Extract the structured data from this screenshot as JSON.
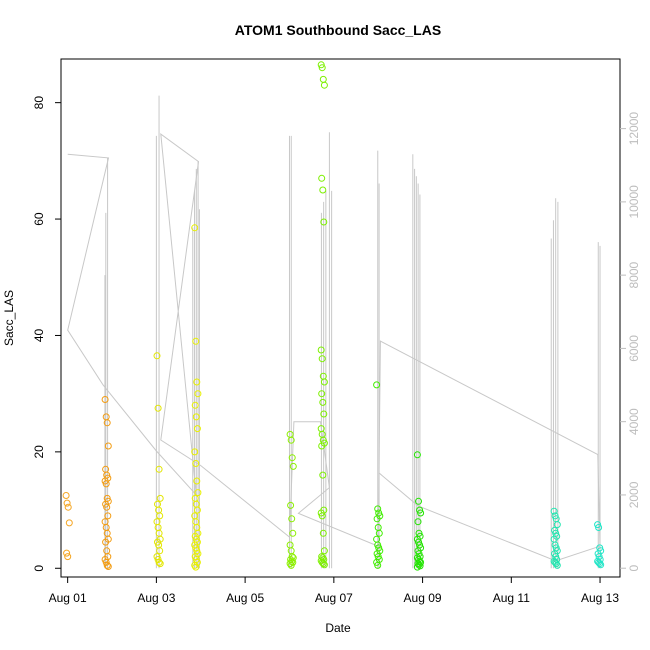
{
  "chart_data": {
    "type": "scatter",
    "title": "ATOM1 Southbound Sacc_LAS",
    "xlabel": "Date",
    "ylabel": "Sacc_LAS",
    "x_ticks": [
      "Aug 01",
      "Aug 03",
      "Aug 05",
      "Aug 07",
      "Aug 09",
      "Aug 11",
      "Aug 13"
    ],
    "x_tick_days": [
      1,
      3,
      5,
      7,
      9,
      11,
      13
    ],
    "xlim": [
      0.85,
      13.45
    ],
    "y_ticks": [
      "0",
      "20",
      "40",
      "60",
      "80"
    ],
    "y_tick_values": [
      0,
      20,
      40,
      60,
      80
    ],
    "ylim": [
      -1.5,
      87.5
    ],
    "y2_ticks": [
      "0",
      "2000",
      "4000",
      "6000",
      "8000",
      "10000",
      "12000"
    ],
    "y2_tick_values": [
      0,
      2000,
      4000,
      6000,
      8000,
      10000,
      12000
    ],
    "y2lim": [
      -240,
      13900
    ],
    "grid": false,
    "line_color": "#c8c8c8",
    "point_series": [
      {
        "day": 1.0,
        "color": "#f5a623",
        "points": [
          12.5,
          11.2,
          10.5,
          7.8,
          2.6,
          2.0
        ]
      },
      {
        "day": 1.88,
        "color": "#f39c12",
        "points": [
          29,
          26,
          25,
          21,
          17,
          16,
          15.5,
          15,
          14.5,
          12,
          11.5,
          11,
          10.5,
          9,
          8,
          7,
          6,
          5,
          4.5,
          3,
          2,
          1.5,
          1,
          0.5,
          0.3
        ]
      },
      {
        "day": 3.05,
        "color": "#e3e600",
        "points": [
          36.5,
          27.5,
          17,
          12,
          11,
          10,
          9,
          8,
          7,
          6,
          5,
          4.5,
          4,
          3,
          2,
          1.5,
          1,
          0.8
        ]
      },
      {
        "day": 3.9,
        "color": "#e8f000",
        "points": [
          58.5,
          39,
          32,
          30,
          28,
          26,
          24,
          20,
          18,
          15,
          13,
          12,
          11,
          10,
          9,
          8,
          7,
          6,
          5.5,
          5,
          4.5,
          4,
          3.5,
          3,
          2.5,
          2,
          1.5,
          1,
          0.5,
          0.2
        ]
      },
      {
        "day": 6.05,
        "color": "#8cf000",
        "points": [
          23,
          22,
          19,
          17.5,
          10.8,
          8.5,
          6,
          4,
          3,
          2,
          1.8,
          1.5,
          1.2,
          1,
          0.8,
          0.5
        ]
      },
      {
        "day": 6.75,
        "color": "#7df000",
        "points": [
          86.5,
          86,
          84,
          83,
          67,
          65,
          59.5,
          37.5,
          36,
          33,
          32,
          30,
          28.5,
          26.5,
          24,
          23,
          22,
          21.5,
          21,
          16,
          10,
          9.5,
          9,
          6,
          3,
          2,
          1.8,
          1.5,
          1.3,
          1,
          0.8,
          0.6
        ]
      },
      {
        "day": 8.0,
        "color": "#40ee00",
        "points": [
          31.5,
          10.2,
          9.5,
          9,
          8.5,
          7,
          6,
          5,
          4,
          3.5,
          3,
          2.5,
          2,
          1.5,
          1,
          0.5
        ]
      },
      {
        "day": 8.92,
        "color": "#22e400",
        "points": [
          19.5,
          11.5,
          10,
          9.5,
          8,
          6,
          5.5,
          5,
          4.5,
          4,
          3.5,
          3,
          2.5,
          2,
          1.8,
          1.5,
          1.2,
          1,
          0.8,
          0.6,
          0.4,
          0.2
        ]
      },
      {
        "day": 12.0,
        "color": "#22e6b0",
        "points": [
          9.8,
          9,
          8.5,
          7.5,
          6.5,
          6,
          5.5,
          5,
          4,
          3.5,
          3,
          2.5,
          2,
          1.5,
          1.2,
          1,
          0.8,
          0.5
        ]
      },
      {
        "day": 12.98,
        "color": "#22e6c8",
        "points": [
          7.5,
          7,
          3.5,
          3,
          2.5,
          2,
          1.5,
          1.2,
          1,
          0.8,
          0.6
        ]
      }
    ],
    "line_spikes": [
      {
        "day": 1.84,
        "max": 8000
      },
      {
        "day": 1.86,
        "max": 9700
      },
      {
        "day": 1.9,
        "max": 11200
      },
      {
        "day": 3.0,
        "max": 11800
      },
      {
        "day": 3.06,
        "max": 12900
      },
      {
        "day": 3.82,
        "max": 9300
      },
      {
        "day": 3.86,
        "max": 10300
      },
      {
        "day": 3.9,
        "max": 10900
      },
      {
        "day": 3.94,
        "max": 11100
      },
      {
        "day": 3.97,
        "max": 9800
      },
      {
        "day": 6.0,
        "max": 11800
      },
      {
        "day": 6.04,
        "max": 11800
      },
      {
        "day": 6.72,
        "max": 9700
      },
      {
        "day": 6.77,
        "max": 10000
      },
      {
        "day": 6.82,
        "max": 10300
      },
      {
        "day": 6.9,
        "max": 11900
      },
      {
        "day": 6.95,
        "max": 10300
      },
      {
        "day": 7.99,
        "max": 11400
      },
      {
        "day": 8.02,
        "max": 10500
      },
      {
        "day": 8.78,
        "max": 11300
      },
      {
        "day": 8.82,
        "max": 10900
      },
      {
        "day": 8.86,
        "max": 10700
      },
      {
        "day": 8.9,
        "max": 10500
      },
      {
        "day": 8.94,
        "max": 10200
      },
      {
        "day": 11.9,
        "max": 9000
      },
      {
        "day": 11.95,
        "max": 9500
      },
      {
        "day": 12.0,
        "max": 10100
      },
      {
        "day": 12.05,
        "max": 10000
      },
      {
        "day": 12.96,
        "max": 8900
      },
      {
        "day": 13.0,
        "max": 8800
      }
    ],
    "line_path": [
      [
        1.0,
        11300
      ],
      [
        1.92,
        11200
      ],
      [
        1.0,
        6500
      ],
      [
        1.8,
        5000
      ],
      [
        3.0,
        3200
      ],
      [
        3.9,
        2000
      ],
      [
        3.1,
        11850
      ],
      [
        3.95,
        11100
      ],
      [
        3.1,
        3500
      ],
      [
        4.0,
        2800
      ],
      [
        6.0,
        850
      ],
      [
        6.1,
        4000
      ],
      [
        6.7,
        4000
      ],
      [
        6.9,
        2200
      ],
      [
        6.2,
        1500
      ],
      [
        8.0,
        600
      ],
      [
        8.05,
        6200
      ],
      [
        12.95,
        3100
      ],
      [
        13.0,
        600
      ],
      [
        12.0,
        200
      ],
      [
        8.9,
        1700
      ],
      [
        8.02,
        2600
      ]
    ]
  }
}
